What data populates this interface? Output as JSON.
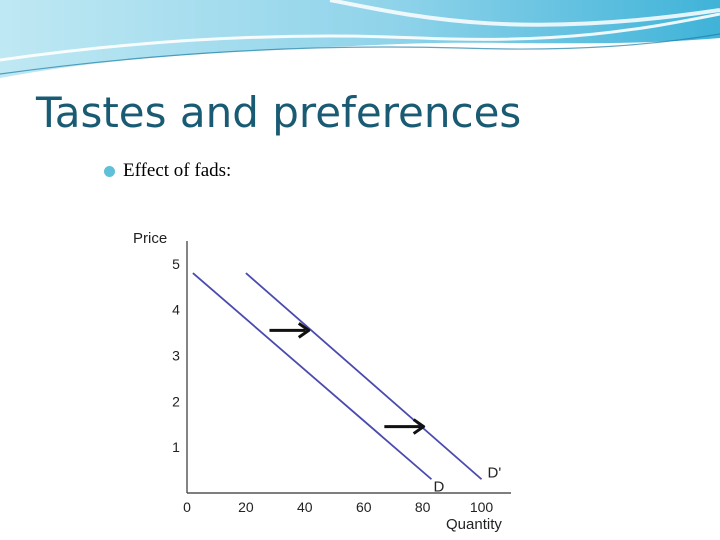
{
  "slide": {
    "title": "Tastes and preferences",
    "bullet": "Effect of fads:"
  },
  "colors": {
    "title": "#1a5b74",
    "bullet": "#5fc0d9",
    "curve": "#4a4ab0",
    "arrow": "#111111"
  },
  "chart_data": {
    "type": "line",
    "xlabel": "Quantity",
    "ylabel": "Price",
    "xlim": [
      0,
      110
    ],
    "ylim": [
      0,
      5.5
    ],
    "x_ticks": [
      "0",
      "20",
      "40",
      "60",
      "80",
      "100"
    ],
    "y_ticks": [
      "1",
      "2",
      "3",
      "4",
      "5"
    ],
    "grid": false,
    "series": [
      {
        "name": "D",
        "x": [
          2,
          83
        ],
        "y": [
          4.8,
          0.3
        ]
      },
      {
        "name": "D'",
        "x": [
          20,
          100
        ],
        "y": [
          4.8,
          0.3
        ]
      }
    ],
    "annotations": [
      {
        "type": "arrow",
        "x_from": 28,
        "x_to": 41,
        "y": 3.55
      },
      {
        "type": "arrow",
        "x_from": 67,
        "x_to": 80,
        "y": 1.45
      }
    ]
  }
}
